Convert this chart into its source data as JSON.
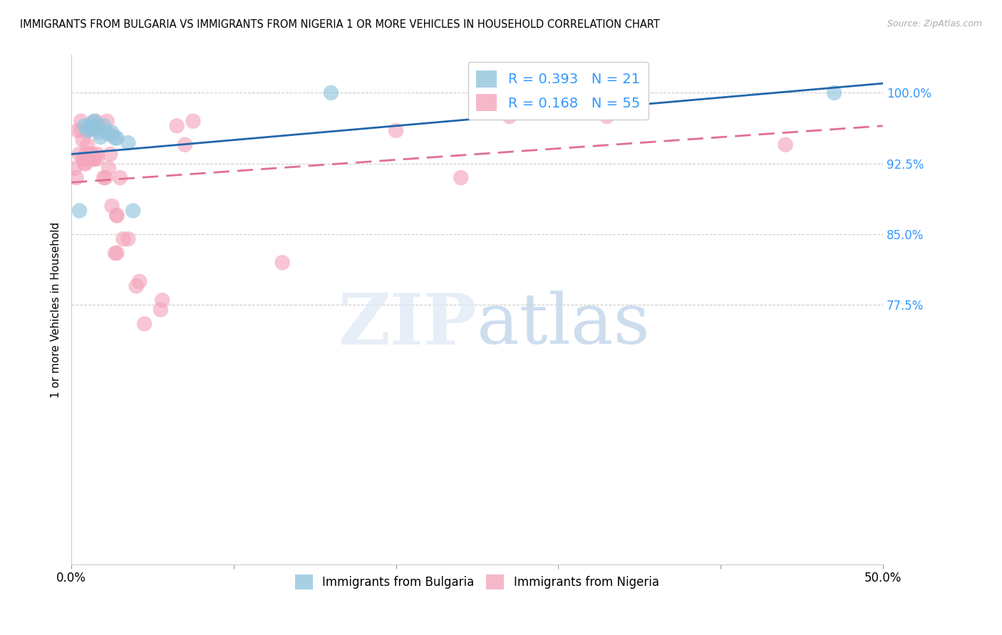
{
  "title": "IMMIGRANTS FROM BULGARIA VS IMMIGRANTS FROM NIGERIA 1 OR MORE VEHICLES IN HOUSEHOLD CORRELATION CHART",
  "source": "Source: ZipAtlas.com",
  "ylabel": "1 or more Vehicles in Household",
  "ytick_labels": [
    "100.0%",
    "92.5%",
    "85.0%",
    "77.5%"
  ],
  "ytick_values": [
    1.0,
    0.925,
    0.85,
    0.775
  ],
  "xlim": [
    0.0,
    0.5
  ],
  "ylim": [
    0.5,
    1.04
  ],
  "legend_blue_R": "0.393",
  "legend_blue_N": "21",
  "legend_pink_R": "0.168",
  "legend_pink_N": "55",
  "legend_label_blue": "Immigrants from Bulgaria",
  "legend_label_pink": "Immigrants from Nigeria",
  "blue_color": "#92c5de",
  "pink_color": "#f4a6bc",
  "trendline_blue_color": "#2166ac",
  "trendline_pink_color": "#e07090",
  "bg_color": "#ffffff",
  "grid_color": "#cccccc",
  "blue_scatter_x": [
    0.005,
    0.008,
    0.01,
    0.011,
    0.012,
    0.013,
    0.013,
    0.014,
    0.015,
    0.016,
    0.017,
    0.018,
    0.02,
    0.022,
    0.025,
    0.027,
    0.028,
    0.035,
    0.038,
    0.16,
    0.47
  ],
  "blue_scatter_y": [
    0.875,
    0.965,
    0.96,
    0.965,
    0.962,
    0.963,
    0.968,
    0.97,
    0.963,
    0.962,
    0.958,
    0.953,
    0.965,
    0.957,
    0.958,
    0.952,
    0.952,
    0.947,
    0.875,
    1.0,
    1.0
  ],
  "blue_scatter_sizes": [
    60,
    60,
    60,
    60,
    60,
    60,
    60,
    60,
    60,
    60,
    60,
    60,
    60,
    60,
    60,
    60,
    60,
    60,
    60,
    60,
    60
  ],
  "pink_scatter_x": [
    0.002,
    0.003,
    0.004,
    0.005,
    0.006,
    0.006,
    0.007,
    0.007,
    0.008,
    0.008,
    0.009,
    0.009,
    0.009,
    0.01,
    0.01,
    0.012,
    0.012,
    0.012,
    0.013,
    0.013,
    0.014,
    0.014,
    0.015,
    0.016,
    0.016,
    0.017,
    0.02,
    0.021,
    0.022,
    0.023,
    0.024,
    0.025,
    0.025,
    0.027,
    0.028,
    0.028,
    0.028,
    0.03,
    0.032,
    0.035,
    0.04,
    0.042,
    0.045,
    0.055,
    0.056,
    0.065,
    0.07,
    0.075,
    0.13,
    0.2,
    0.24,
    0.27,
    0.29,
    0.33,
    0.44
  ],
  "pink_scatter_y": [
    0.92,
    0.91,
    0.96,
    0.935,
    0.97,
    0.96,
    0.93,
    0.95,
    0.93,
    0.925,
    0.935,
    0.93,
    0.925,
    0.96,
    0.945,
    0.93,
    0.935,
    0.93,
    0.935,
    0.93,
    0.93,
    0.93,
    0.97,
    0.935,
    0.93,
    0.965,
    0.91,
    0.91,
    0.97,
    0.92,
    0.935,
    0.955,
    0.88,
    0.83,
    0.83,
    0.87,
    0.87,
    0.91,
    0.845,
    0.845,
    0.795,
    0.8,
    0.755,
    0.77,
    0.78,
    0.965,
    0.945,
    0.97,
    0.82,
    0.96,
    0.91,
    0.975,
    1.0,
    0.975,
    0.945
  ],
  "pink_scatter_sizes": [
    60,
    60,
    60,
    60,
    60,
    60,
    60,
    60,
    60,
    60,
    60,
    60,
    60,
    60,
    60,
    60,
    60,
    60,
    60,
    60,
    60,
    60,
    60,
    60,
    60,
    60,
    60,
    60,
    60,
    60,
    60,
    60,
    60,
    60,
    60,
    60,
    60,
    60,
    60,
    60,
    60,
    60,
    60,
    60,
    60,
    60,
    60,
    60,
    60,
    60,
    60,
    60,
    60,
    60,
    60
  ]
}
